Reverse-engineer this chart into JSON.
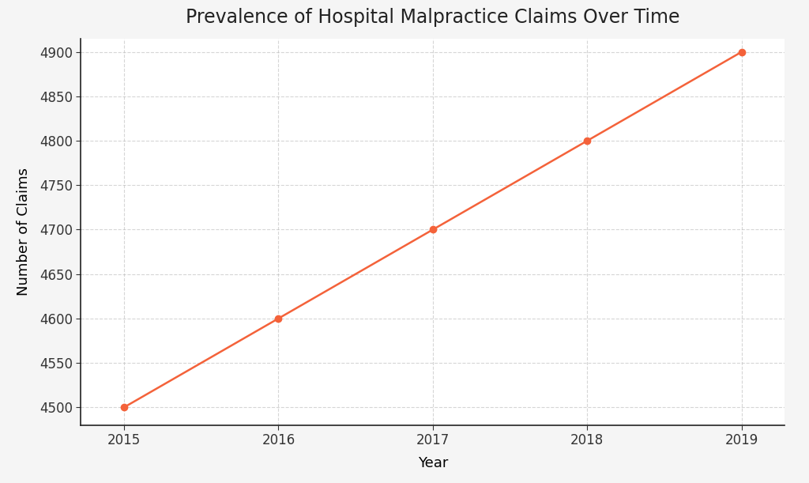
{
  "title": "Prevalence of Hospital Malpractice Claims Over Time",
  "xlabel": "Year",
  "ylabel": "Number of Claims",
  "years": [
    2015,
    2016,
    2017,
    2018,
    2019
  ],
  "claims": [
    4500,
    4600,
    4700,
    4800,
    4900
  ],
  "line_color": "#f4623a",
  "marker_color": "#f4623a",
  "marker_style": "o",
  "marker_size": 6,
  "line_width": 1.8,
  "ylim": [
    4480,
    4915
  ],
  "xlim": [
    2014.72,
    2019.28
  ],
  "yticks": [
    4500,
    4550,
    4600,
    4650,
    4700,
    4750,
    4800,
    4850,
    4900
  ],
  "xticks": [
    2015,
    2016,
    2017,
    2018,
    2019
  ],
  "grid_color": "#bbbbbb",
  "grid_style": "--",
  "grid_alpha": 0.6,
  "bg_color": "#ffffff",
  "fig_bg_color": "#f5f5f5",
  "title_fontsize": 17,
  "label_fontsize": 13,
  "tick_fontsize": 12,
  "spine_color": "#222222"
}
